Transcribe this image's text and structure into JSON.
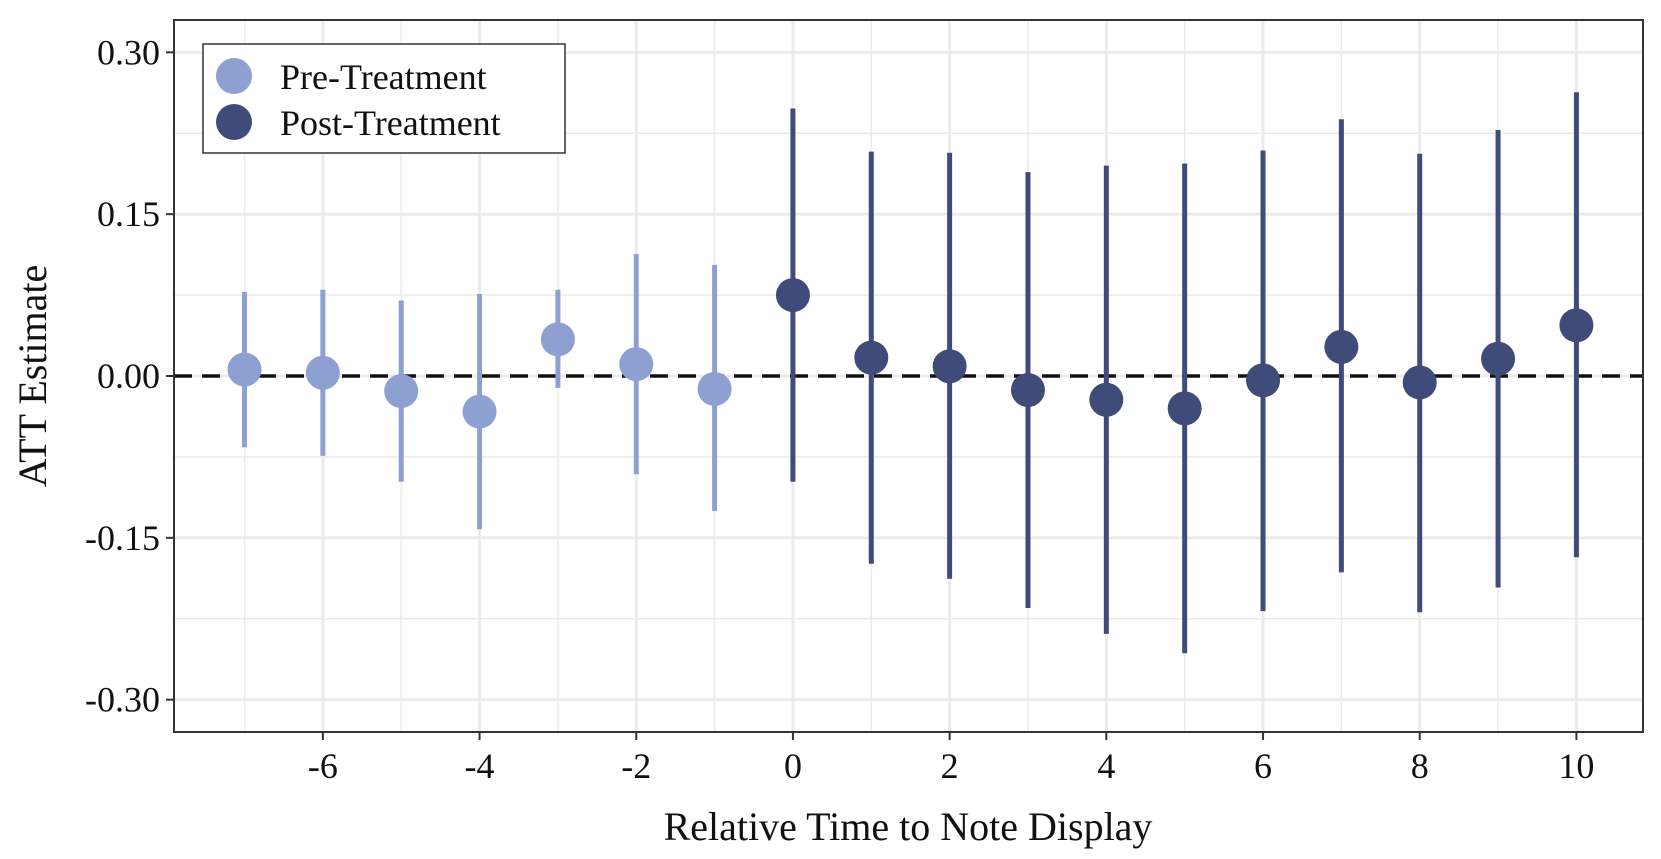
{
  "colors": {
    "pre": "#8e9fd1",
    "post": "#3f4b78",
    "grid": "#ebebeb",
    "zero_line": "#111111",
    "frame": "#333333"
  },
  "chart_data": {
    "type": "scatter",
    "title": "",
    "xlabel": "Relative Time to Note Display",
    "ylabel": "ATT Estimate",
    "xlim": [
      -7.9,
      10.85
    ],
    "ylim": [
      -0.33,
      0.33
    ],
    "x_ticks": [
      -6,
      -4,
      -2,
      0,
      2,
      4,
      6,
      8,
      10
    ],
    "x_tick_labels": [
      "-6",
      "-4",
      "-2",
      "0",
      "2",
      "4",
      "6",
      "8",
      "10"
    ],
    "y_ticks": [
      0.3,
      0.15,
      0.0,
      -0.15,
      -0.3
    ],
    "y_tick_labels": [
      "0.30",
      "0.15",
      "0.00",
      "-0.15",
      "-0.30"
    ],
    "reference_line": {
      "y": 0,
      "style": "dashed"
    },
    "legend": {
      "position": "top-left",
      "entries": [
        "Pre-Treatment",
        "Post-Treatment"
      ]
    },
    "series": [
      {
        "name": "Pre-Treatment",
        "x": [
          -7,
          -6,
          -5,
          -4,
          -3,
          -2,
          -1
        ],
        "y": [
          0.006,
          0.003,
          -0.014,
          -0.033,
          0.034,
          0.011,
          -0.012
        ],
        "lower": [
          -0.066,
          -0.074,
          -0.098,
          -0.142,
          -0.011,
          -0.091,
          -0.125
        ],
        "upper": [
          0.078,
          0.08,
          0.07,
          0.076,
          0.08,
          0.113,
          0.103
        ]
      },
      {
        "name": "Post-Treatment",
        "x": [
          0,
          1,
          2,
          3,
          4,
          5,
          6,
          7,
          8,
          9,
          10
        ],
        "y": [
          0.075,
          0.017,
          0.009,
          -0.013,
          -0.022,
          -0.03,
          -0.004,
          0.027,
          -0.006,
          0.016,
          0.047
        ],
        "lower": [
          -0.098,
          -0.174,
          -0.188,
          -0.215,
          -0.239,
          -0.257,
          -0.218,
          -0.182,
          -0.219,
          -0.196,
          -0.168
        ],
        "upper": [
          0.248,
          0.208,
          0.207,
          0.189,
          0.195,
          0.197,
          0.209,
          0.238,
          0.206,
          0.228,
          0.263
        ]
      }
    ]
  }
}
